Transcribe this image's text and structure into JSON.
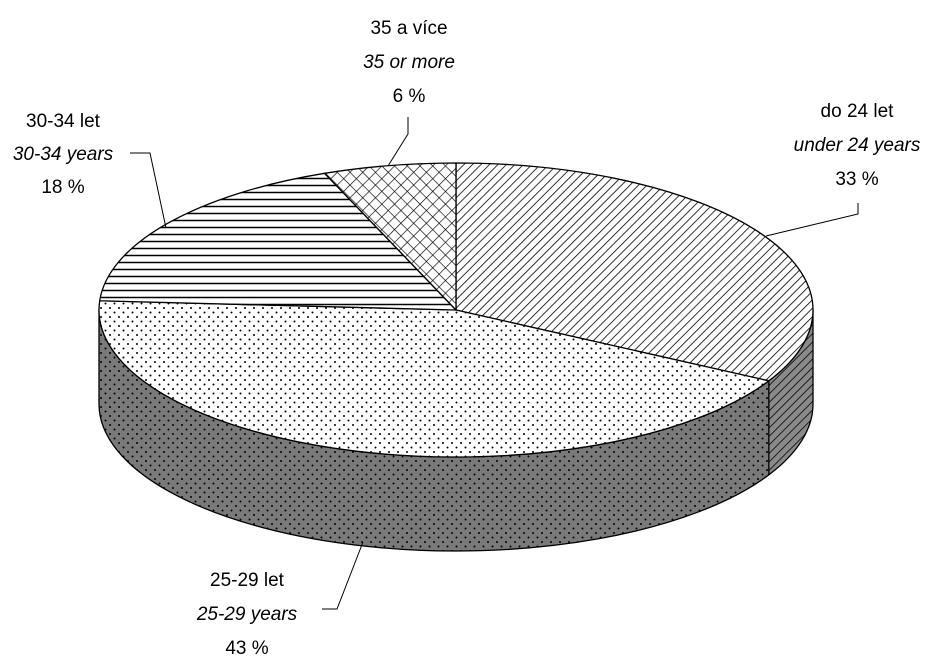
{
  "chart_data": {
    "type": "pie",
    "style": "3d",
    "title": "",
    "legend": "none",
    "slices": [
      {
        "label_cz": "do 24 let",
        "label_en": "under 24 years",
        "value": 33,
        "value_label": "33 %",
        "pattern": "diagonal-hatch"
      },
      {
        "label_cz": "25-29 let",
        "label_en": "25-29 years",
        "value": 43,
        "value_label": "43 %",
        "pattern": "dots"
      },
      {
        "label_cz": "30-34 let",
        "label_en": "30-34 years",
        "value": 18,
        "value_label": "18 %",
        "pattern": "horizontal-lines"
      },
      {
        "label_cz": "35 a více",
        "label_en": "35 or more",
        "value": 6,
        "value_label": "6 %",
        "pattern": "crosshatch"
      }
    ]
  }
}
